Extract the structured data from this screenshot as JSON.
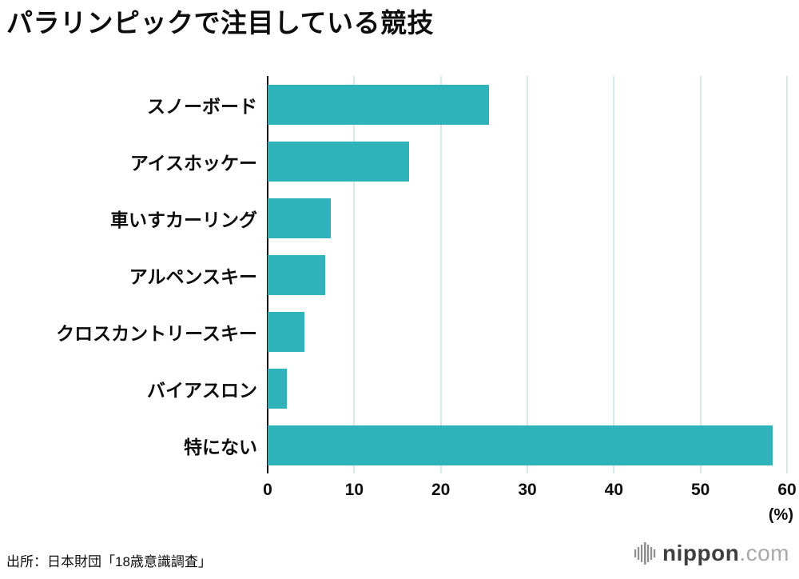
{
  "title": "パラリンピックで注目している競技",
  "source": "出所：日本財団「18歳意識調査」",
  "axis_unit": "(%)",
  "logo": {
    "name": "nippon",
    "tld": ".com"
  },
  "chart_data": {
    "type": "bar",
    "orientation": "horizontal",
    "title": "パラリンピックで注目している競技",
    "categories": [
      "スノーボード",
      "アイスホッケー",
      "車いすカーリング",
      "アルペンスキー",
      "クロスカントリースキー",
      "バイアスロン",
      "特にない"
    ],
    "values": [
      25.6,
      16.3,
      7.3,
      6.6,
      4.2,
      2.2,
      58.3
    ],
    "xlabel": "(%)",
    "ylabel": "",
    "xlim": [
      0,
      60
    ],
    "xticks": [
      0,
      10,
      20,
      30,
      40,
      50,
      60
    ],
    "bar_color": "#2fb3ba",
    "gridline_color": "#d6e8ea",
    "axis_color": "#151515",
    "grid": true,
    "legend": false
  }
}
